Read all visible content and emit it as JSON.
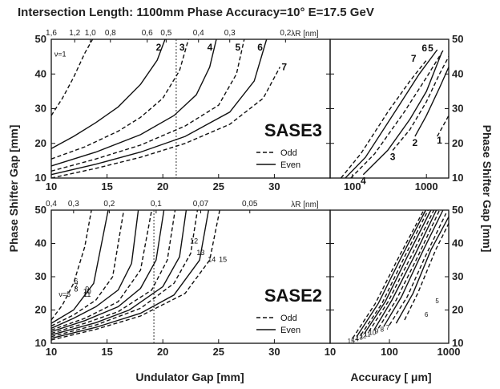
{
  "title": "Intersection Length: 1100mm   Phase Accuracy=10°  E=17.5 GeV",
  "left_axis_label": "Phase  Shifter Gap  [mm]",
  "right_axis_label": "Phase  Shifter Gap  [mm]",
  "bottom_left_label": "Undulator Gap [mm]",
  "bottom_right_label": "Accuracy  [ μm]",
  "chart_data": [
    {
      "id": "sase3-gap",
      "type": "line",
      "panel_label": "SASE3",
      "xlabel": "",
      "top_label": "λR [nm]",
      "xlim": [
        10,
        35
      ],
      "ylim": [
        10,
        50
      ],
      "x_ticks": [
        "10",
        "15",
        "20",
        "25",
        "30"
      ],
      "y_ticks": [
        "10",
        "20",
        "30",
        "40",
        "50"
      ],
      "top_ticks": [
        {
          "label": "1,6",
          "x": 10.0
        },
        {
          "label": "1,2",
          "x": 12.1
        },
        {
          "label": "1,0",
          "x": 13.5
        },
        {
          "label": "0,8",
          "x": 15.3
        },
        {
          "label": "0,6",
          "x": 18.6
        },
        {
          "label": "0,5",
          "x": 20.3
        },
        {
          "label": "0,4",
          "x": 23.2
        },
        {
          "label": "0,3",
          "x": 26.0
        },
        {
          "label": "0,2",
          "x": 31.0
        }
      ],
      "legend": [
        "Odd",
        "Even"
      ],
      "vline_x": 21.2,
      "series": [
        {
          "name": "ν=1",
          "style": "dashed",
          "x": [
            10,
            11,
            12,
            13,
            13.7
          ],
          "y": [
            28,
            33,
            39,
            46,
            50
          ]
        },
        {
          "name": "2",
          "style": "solid",
          "x": [
            10,
            12,
            14,
            16,
            18,
            19.5,
            20.2
          ],
          "y": [
            18.5,
            22,
            26,
            30.5,
            37,
            44,
            50
          ]
        },
        {
          "name": "3",
          "style": "dashed",
          "x": [
            10,
            13,
            16,
            18,
            20,
            21.5,
            22.3
          ],
          "y": [
            15.5,
            19,
            23.5,
            27.5,
            33,
            41,
            50
          ]
        },
        {
          "name": "4",
          "style": "solid",
          "x": [
            10,
            14,
            18,
            21,
            23,
            24.2,
            24.8
          ],
          "y": [
            13.5,
            17.5,
            22.5,
            28,
            34,
            42,
            50
          ]
        },
        {
          "name": "5",
          "style": "dashed",
          "x": [
            10,
            14,
            18,
            22,
            25,
            26.6,
            27.3
          ],
          "y": [
            12,
            15.5,
            19.5,
            25,
            31,
            40,
            50
          ]
        },
        {
          "name": "6",
          "style": "solid",
          "x": [
            10,
            14,
            18,
            22,
            26,
            28.2,
            29.3
          ],
          "y": [
            11,
            14,
            17.5,
            22,
            29,
            38,
            50
          ]
        },
        {
          "name": "7",
          "style": "dashed",
          "x": [
            10,
            14,
            18,
            22,
            26,
            29,
            30.5
          ],
          "y": [
            10,
            12.8,
            16,
            20,
            25.5,
            33,
            42
          ]
        }
      ]
    },
    {
      "id": "sase3-acc",
      "type": "line",
      "xscale": "log",
      "xlim": [
        50,
        2000
      ],
      "ylim": [
        10,
        50
      ],
      "y_ticks": [
        "10",
        "20",
        "30",
        "40",
        "50"
      ],
      "x_ticks": [
        "100",
        "1000"
      ],
      "series": [
        {
          "name": "1",
          "style": "dashed",
          "x": [
            1400,
            2000
          ],
          "y": [
            22,
            28
          ]
        },
        {
          "name": "2",
          "style": "solid",
          "x": [
            700,
            1000,
            1500,
            2000
          ],
          "y": [
            22,
            28,
            36,
            42
          ]
        },
        {
          "name": "3",
          "style": "dashed",
          "x": [
            350,
            600,
            1000,
            1500,
            2000
          ],
          "y": [
            18,
            24,
            32,
            40,
            45
          ]
        },
        {
          "name": "4",
          "style": "solid",
          "x": [
            140,
            300,
            600,
            1000,
            1600
          ],
          "y": [
            11,
            18,
            27,
            35,
            46
          ]
        },
        {
          "name": "5",
          "style": "dashed",
          "x": [
            95,
            200,
            500,
            1000,
            1700
          ],
          "y": [
            10,
            17,
            29,
            39,
            47
          ]
        },
        {
          "name": "6",
          "style": "solid",
          "x": [
            80,
            150,
            400,
            800,
            1400
          ],
          "y": [
            10,
            16,
            30,
            40,
            47
          ]
        },
        {
          "name": "7",
          "style": "dashed",
          "x": [
            70,
            130,
            300,
            600,
            1000
          ],
          "y": [
            10,
            17,
            29,
            38,
            44
          ]
        }
      ]
    },
    {
      "id": "sase2-gap",
      "type": "line",
      "panel_label": "SASE2",
      "xlabel": "Undulator Gap [mm]",
      "top_label": "λR [nm]",
      "xlim": [
        10,
        35
      ],
      "ylim": [
        10,
        50
      ],
      "x_ticks": [
        "10",
        "15",
        "20",
        "25",
        "30"
      ],
      "y_ticks": [
        "10",
        "20",
        "30",
        "40",
        "50"
      ],
      "top_ticks": [
        {
          "label": "0,4",
          "x": 10.0
        },
        {
          "label": "0,3",
          "x": 12.0
        },
        {
          "label": "0,2",
          "x": 15.2
        },
        {
          "label": "0,1",
          "x": 19.4
        },
        {
          "label": "0,07",
          "x": 23.4
        },
        {
          "label": "0,05",
          "x": 27.8
        }
      ],
      "legend": [
        "Odd",
        "Even"
      ],
      "vline_x": 19.2,
      "series": [
        {
          "name": "ν=5",
          "style": "dashed",
          "x": [
            10,
            11,
            12,
            13,
            13.6
          ],
          "y": [
            17,
            21.5,
            28,
            39,
            50
          ]
        },
        {
          "name": "6",
          "style": "solid",
          "x": [
            10,
            12,
            13.8,
            15.1
          ],
          "y": [
            16,
            20,
            28,
            50
          ]
        },
        {
          "name": "7",
          "style": "dashed",
          "x": [
            10,
            12,
            14,
            15.5,
            16.5
          ],
          "y": [
            15.2,
            18.5,
            23,
            30,
            50
          ]
        },
        {
          "name": "8",
          "style": "solid",
          "x": [
            10,
            12,
            14,
            16,
            17.2,
            17.8
          ],
          "y": [
            14.5,
            17.5,
            21,
            26,
            34,
            50
          ]
        },
        {
          "name": "9",
          "style": "dashed",
          "x": [
            10,
            13,
            16,
            18,
            19
          ],
          "y": [
            14,
            17.5,
            22.5,
            32,
            50
          ]
        },
        {
          "name": "10",
          "style": "solid",
          "x": [
            10,
            13,
            16,
            18,
            19.4,
            20.1
          ],
          "y": [
            13.5,
            16.8,
            21,
            26.5,
            35,
            50
          ]
        },
        {
          "name": "11",
          "style": "dashed",
          "x": [
            10,
            13,
            16,
            19,
            20.4,
            21.1
          ],
          "y": [
            13,
            16,
            19.5,
            26,
            35,
            50
          ]
        },
        {
          "name": "12",
          "style": "solid",
          "x": [
            10,
            14,
            17,
            20,
            21.5,
            22.1
          ],
          "y": [
            12.5,
            16.2,
            20,
            27,
            36,
            50
          ]
        },
        {
          "name": "13",
          "style": "dashed",
          "x": [
            10,
            14,
            18,
            21,
            22.5,
            23.1
          ],
          "y": [
            12,
            15.5,
            20.5,
            28,
            37,
            50
          ]
        },
        {
          "name": "14",
          "style": "solid",
          "x": [
            10,
            14,
            18,
            21,
            23.3,
            24.1
          ],
          "y": [
            11.5,
            14.8,
            19,
            24.5,
            35,
            50
          ]
        },
        {
          "name": "15",
          "style": "dashed",
          "x": [
            10,
            14,
            18,
            22,
            24.2,
            25.1
          ],
          "y": [
            11,
            14.2,
            18.2,
            25,
            35,
            50
          ]
        }
      ]
    },
    {
      "id": "sase2-acc",
      "type": "line",
      "xlabel": "Accuracy  [ μm]",
      "xscale": "log",
      "xlim": [
        10,
        1000
      ],
      "ylim": [
        10,
        50
      ],
      "y_ticks": [
        "10",
        "20",
        "30",
        "40",
        "50"
      ],
      "x_ticks": [
        "10",
        "100",
        "1000"
      ],
      "series": [
        {
          "name": "5",
          "style": "dashed",
          "x": [
            180,
            300,
            600,
            1000
          ],
          "y": [
            17,
            25,
            38,
            46
          ]
        },
        {
          "name": "6",
          "style": "solid",
          "x": [
            130,
            250,
            500,
            1000
          ],
          "y": [
            16,
            25,
            38,
            48
          ]
        },
        {
          "name": "7",
          "style": "dashed",
          "x": [
            100,
            200,
            400,
            900
          ],
          "y": [
            15.5,
            24,
            36,
            49
          ]
        },
        {
          "name": "8",
          "style": "solid",
          "x": [
            80,
            160,
            350,
            800
          ],
          "y": [
            15,
            24,
            37,
            50
          ]
        },
        {
          "name": "9",
          "style": "dashed",
          "x": [
            65,
            130,
            300,
            700
          ],
          "y": [
            14.5,
            23,
            36,
            50
          ]
        },
        {
          "name": "10",
          "style": "solid",
          "x": [
            55,
            110,
            260,
            620
          ],
          "y": [
            14,
            23,
            36,
            50
          ]
        },
        {
          "name": "11",
          "style": "dashed",
          "x": [
            45,
            95,
            230,
            560
          ],
          "y": [
            13.5,
            22.5,
            36,
            50
          ]
        },
        {
          "name": "12",
          "style": "solid",
          "x": [
            38,
            85,
            200,
            500
          ],
          "y": [
            13,
            22.5,
            36,
            50
          ]
        },
        {
          "name": "13",
          "style": "dashed",
          "x": [
            33,
            75,
            180,
            450
          ],
          "y": [
            12.5,
            22,
            36,
            50
          ]
        },
        {
          "name": "14",
          "style": "solid",
          "x": [
            28,
            65,
            160,
            410
          ],
          "y": [
            12,
            22,
            36,
            50
          ]
        },
        {
          "name": "15",
          "style": "dashed",
          "x": [
            24,
            58,
            145,
            380
          ],
          "y": [
            11.5,
            22,
            36,
            50
          ]
        }
      ]
    }
  ]
}
